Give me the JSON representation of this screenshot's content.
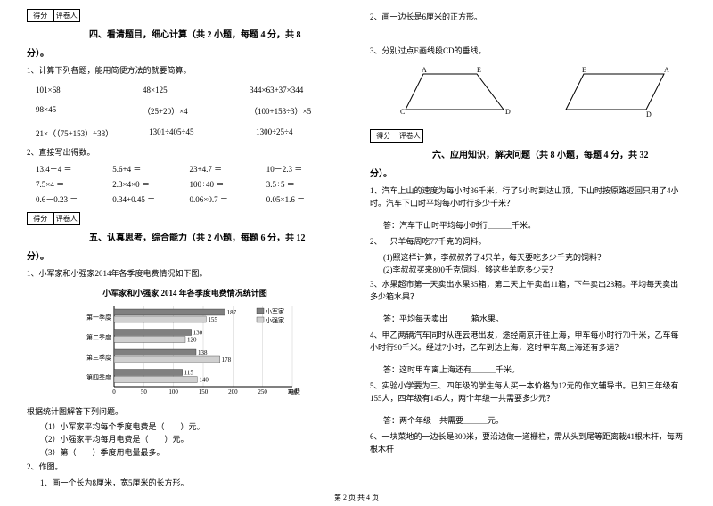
{
  "scorebox": {
    "c1": "得分",
    "c2": "评卷人"
  },
  "sec4": {
    "title": "四、看清题目，细心计算（共 2 小题，每题 4 分，共 8",
    "title2": "分）。",
    "q1": "1、计算下列各题，能用简便方法的就要简算。",
    "r1": [
      "101×68",
      "48×125",
      "344×63+37×344"
    ],
    "r2": [
      "98×45",
      "（25+20）×4",
      "（100+153÷3）×5"
    ],
    "r3": [
      "21×（（75+153）÷38）",
      "1301÷405÷45",
      "1300÷25÷4"
    ],
    "q2": "2、直接写出得数。",
    "r4": [
      "13.4－4 ＝",
      "5.6+4 ＝",
      "23+4.7 ＝",
      "10－2.3 ＝"
    ],
    "r5": [
      "7.5×4 ＝",
      "2.3×4×0 ＝",
      "100÷40 ＝",
      "3.5÷5 ＝"
    ],
    "r6": [
      "0.6－0.23 ＝",
      "0.34+0.45 ＝",
      "0.06×0.7 ＝",
      "0.05×1.6 ＝"
    ]
  },
  "sec5": {
    "title": "五、认真思考，综合能力（共 2 小题，每题 6 分，共 12",
    "title2": "分）。",
    "q1": "1、小军家和小强家2014年各季度电费情况如下图。",
    "chart_title": "小军家和小强家 2014 年各季度电费情况统计图",
    "chart": {
      "categories": [
        "第一季度",
        "第二季度",
        "第三季度",
        "第四季度"
      ],
      "series": [
        {
          "name": "小军家",
          "color": "#808080",
          "values": [
            187,
            130,
            138,
            115
          ]
        },
        {
          "name": "小强家",
          "color": "#d0d0d0",
          "values": [
            155,
            120,
            178,
            140
          ]
        }
      ],
      "xmax": 300,
      "xticks": [
        0,
        50,
        100,
        150,
        200,
        250,
        300
      ],
      "xlabel": "电费（元）",
      "bg": "#ffffff",
      "grid": "#cccccc",
      "text_color": "#000000",
      "font_size": 7
    },
    "sub_intro": "根据统计图解答下列问题。",
    "s1": "（1）小军家平均每个季度电费是（　　）元。",
    "s2": "（2）小强家平均每月电费是（　　）元。",
    "s3": "（3）第（　　）季度用电量最多。",
    "q2": "2、作图。",
    "q2a": "1、画一个长为8厘米，宽5厘米的长方形。"
  },
  "right": {
    "q2": "2、画一边长是6厘米的正方形。",
    "q3": "3、分别过点E画线段CD的垂线。",
    "shapes": {
      "trap": {
        "A": "A",
        "E": "E",
        "C": "C",
        "D": "D",
        "stroke": "#000000"
      },
      "para": {
        "E": "E",
        "A": "A",
        "D": "D",
        "stroke": "#000000"
      }
    }
  },
  "sec6": {
    "title": "六、应用知识，解决问题（共 8 小题，每题 4 分，共 32",
    "title2": "分）。",
    "q1": "1、汽车上山的速度为每小时36千米，行了5小时到达山顶，下山时按原路返回只用了4小时。汽车下山时平均每小时行多少千米？",
    "a1": "答：汽车下山时平均每小时行＿＿＿千米。",
    "q2": "2、一只羊每周吃77千克的饲料。",
    "q2a": "(1)照这样计算，李叔叔养了4只羊，每天要吃多少千克的饲料？",
    "q2b": "(2)李叔叔买来800千克饲料，够这些羊吃多少天？",
    "q3": "3、水果超市第一天卖出水果35箱，第二天上午卖出11箱，下午卖出28箱。平均每天卖出多少箱水果？",
    "a3": "答：平均每天卖出＿＿＿箱水果。",
    "q4": "4、甲乙两辆汽车同时从连云港出发，途经南京开往上海，甲车每小时行70千米，乙车每小时行90千米。经过7小时，乙车到达上海，这时甲车离上海还有多远？",
    "a4": "答：这时甲车离上海还有＿＿＿千米。",
    "q5": "5、实验小学要为三、四年级的学生每人买一本价格为12元的作文辅导书。已知三年级有155人，四年级有145人，两个年级一共需要多少元？",
    "a5": "答：两个年级一共需要＿＿＿元。",
    "q6": "6、一块菜地的一边长是800米，要沿边做一道栅栏，需从头到尾等距离栽41根木杆，每两根木杆"
  },
  "footer": "第 2 页 共 4 页"
}
